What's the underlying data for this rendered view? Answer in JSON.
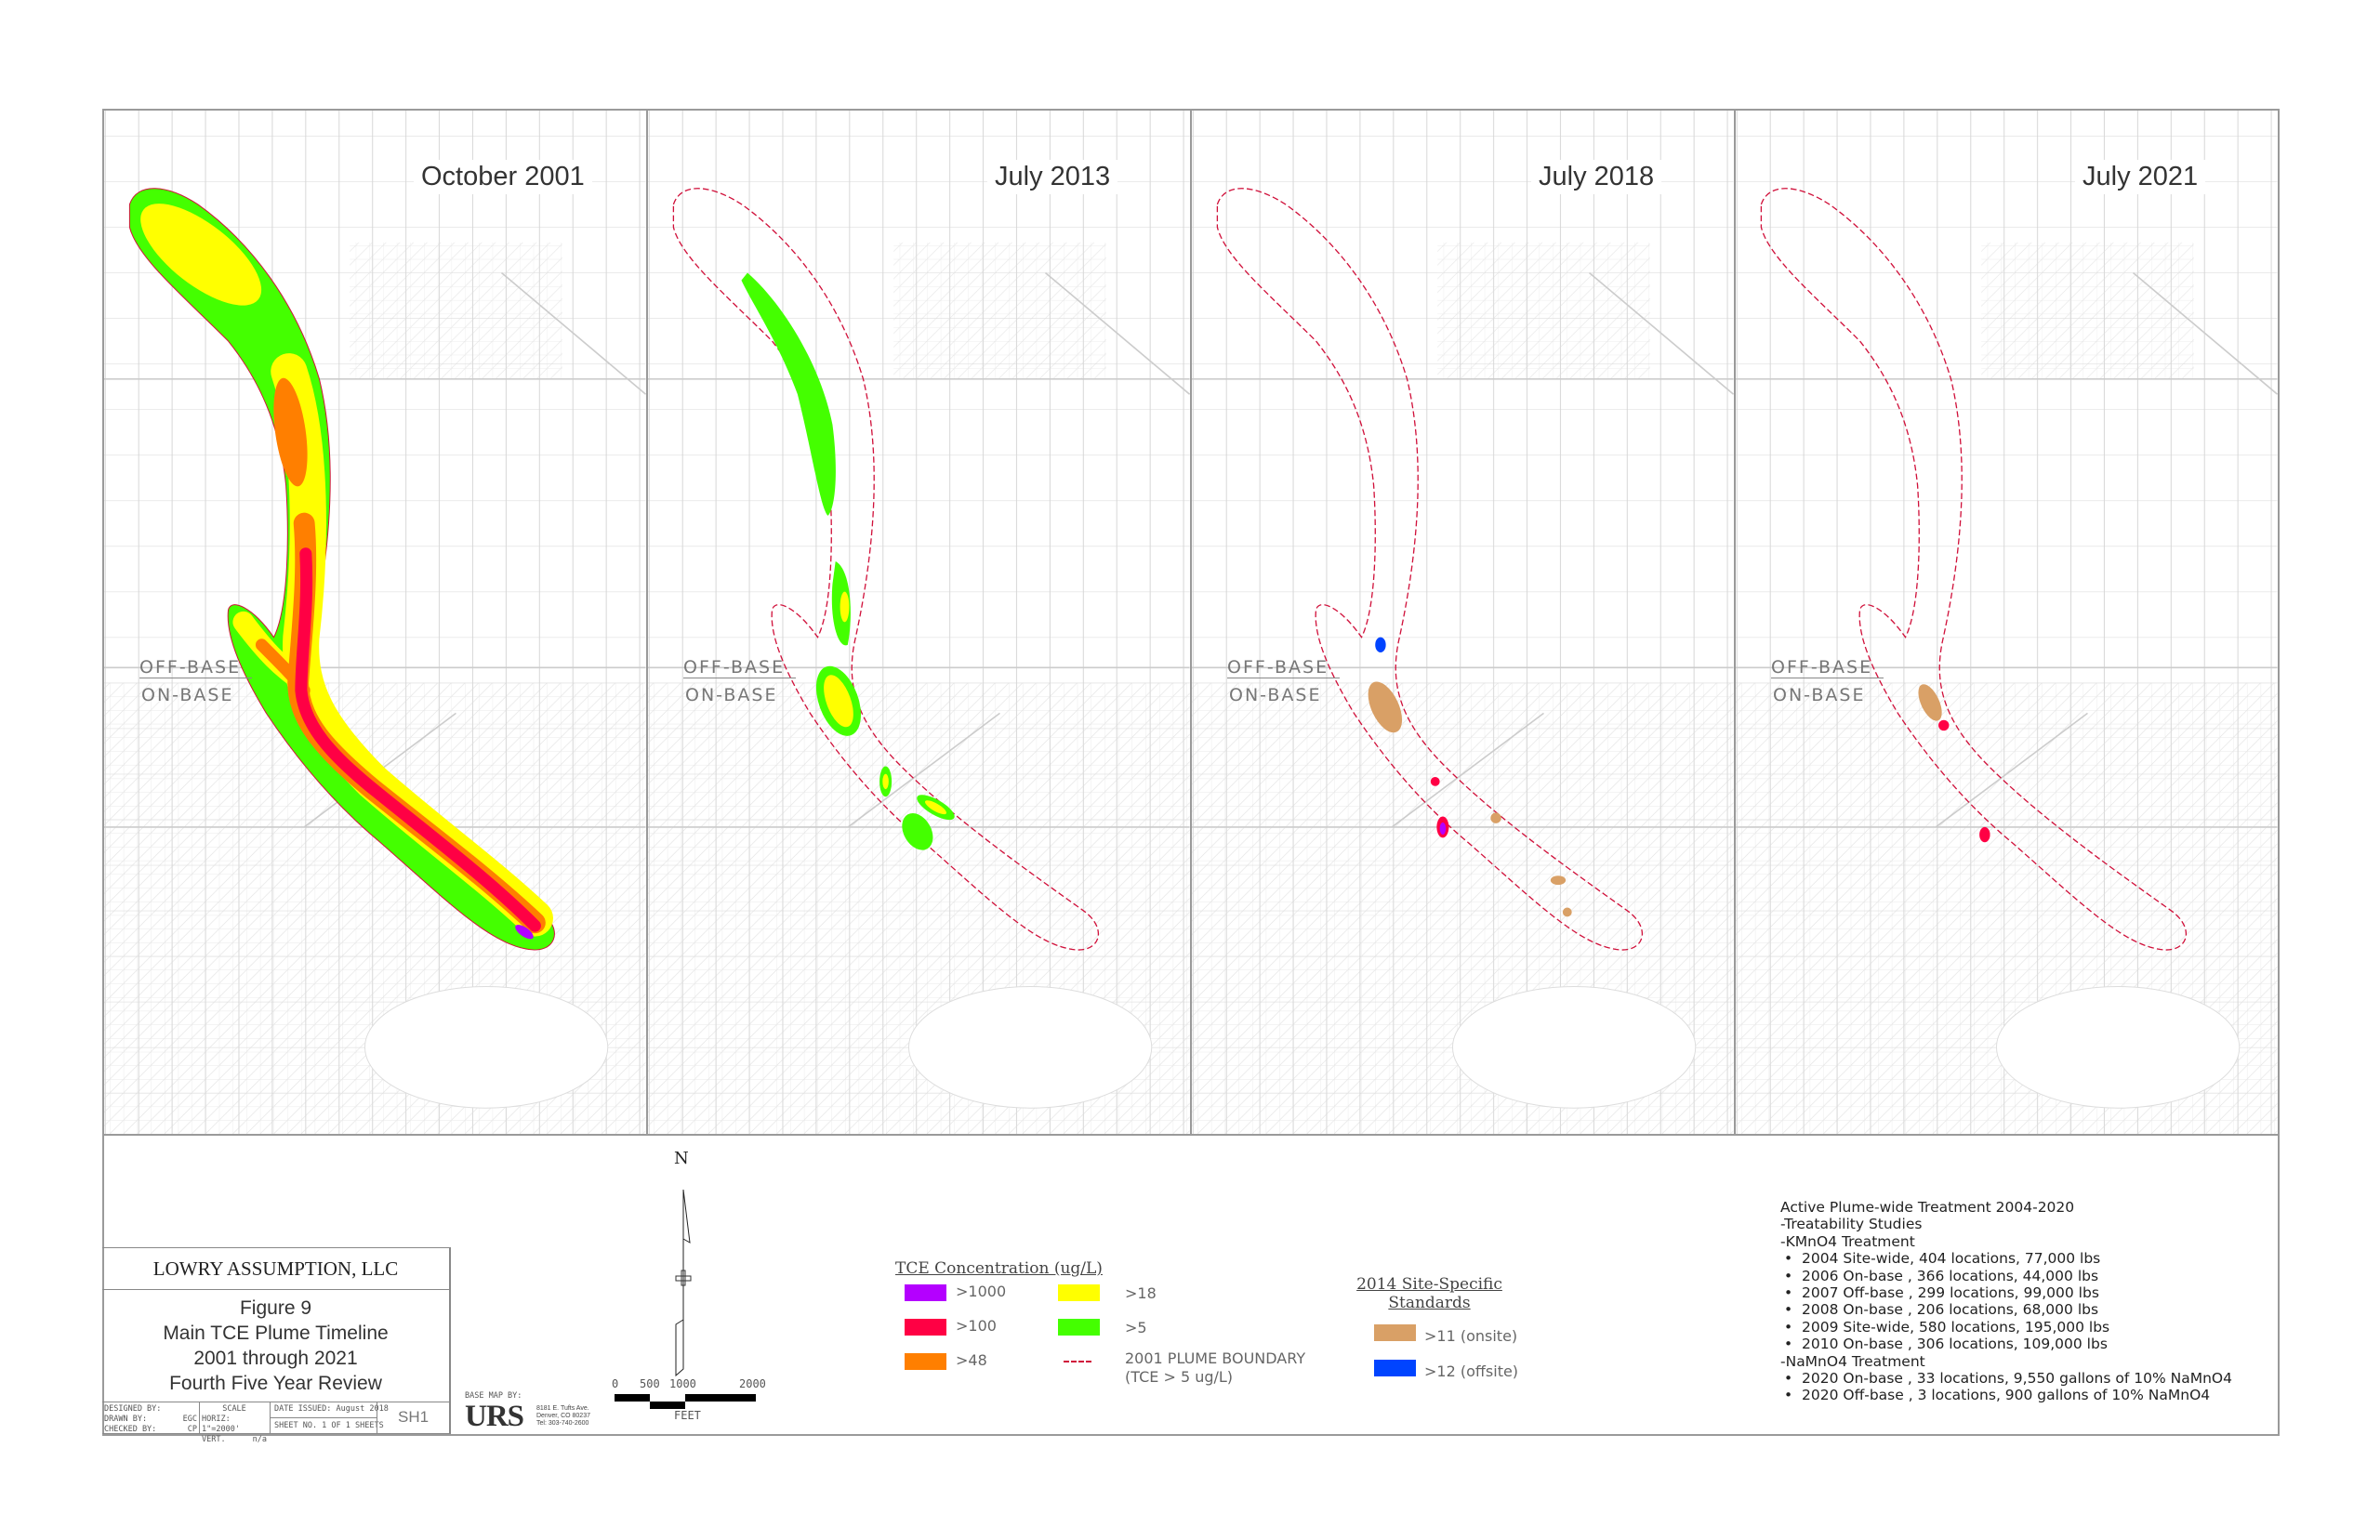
{
  "panels": [
    {
      "title": "October 2001",
      "off_base": "OFF-BASE",
      "on_base": "ON-BASE"
    },
    {
      "title": "July 2013",
      "off_base": "OFF-BASE",
      "on_base": "ON-BASE"
    },
    {
      "title": "July 2018",
      "off_base": "OFF-BASE",
      "on_base": "ON-BASE"
    },
    {
      "title": "July 2021",
      "off_base": "OFF-BASE",
      "on_base": "ON-BASE"
    }
  ],
  "title_block": {
    "company": "LOWRY ASSUMPTION, LLC",
    "figure": "Figure 9",
    "line1": "Main TCE Plume Timeline",
    "line2": "2001 through 2021",
    "line3": "Fourth Five Year Review",
    "designed_by": "DESIGNED BY:",
    "drawn_by": "DRAWN BY:",
    "drawn_by_value": "EGC",
    "checked_by": "CHECKED BY:",
    "checked_by_value": "CP",
    "scale_label": "SCALE",
    "scale_horiz": "HORIZ: 1\"=2000'",
    "scale_vert": "VERT.",
    "scale_vert_value": "n/a",
    "date_issued": "DATE ISSUED: August 2018",
    "sheet": "SHEET NO.  1  OF  1  SHEETS",
    "sheet_id": "SH1"
  },
  "base_map": {
    "label": "BASE MAP BY:",
    "logo": "URS",
    "address1": "8181 E. Tufts Ave.",
    "address2": "Denver, CO 80237",
    "phone": "Tel: 303-740-2600"
  },
  "north_arrow": {
    "label": "N"
  },
  "scale_bar": {
    "ticks": [
      "0",
      "500",
      "1000",
      "2000"
    ],
    "unit": "FEET"
  },
  "legend": {
    "title": "TCE Concentration (ug/L)",
    "items": [
      {
        "label": ">1000",
        "color": "#b400ff"
      },
      {
        "label": ">100",
        "color": "#ff0044"
      },
      {
        "label": ">48",
        "color": "#ff7f00"
      },
      {
        "label": ">18",
        "color": "#ffff00"
      },
      {
        "label": ">5",
        "color": "#44ff00"
      }
    ],
    "boundary_label1": "2001 PLUME BOUNDARY",
    "boundary_label2": "(TCE > 5 ug/L)",
    "boundary_color": "#d0103a",
    "standards_title1": "2014 Site-Specific",
    "standards_title2": "Standards",
    "standards": [
      {
        "label": ">11 (onsite)",
        "color": "#d9a066"
      },
      {
        "label": ">12 (offsite)",
        "color": "#0044ff"
      }
    ]
  },
  "notes": {
    "heading": "Active Plume-wide Treatment 2004-2020",
    "sub1": "-Treatability Studies",
    "sub2": "-KMnO4 Treatment",
    "kmno4": [
      "2004 Site-wide, 404 locations, 77,000 lbs",
      "2006 On-base , 366 locations, 44,000 lbs",
      "2007 Off-base , 299 locations, 99,000 lbs",
      "2008  On-base , 206 locations, 68,000 lbs",
      "2009 Site-wide, 580 locations, 195,000 lbs",
      "2010  On-base , 306 locations, 109,000 lbs"
    ],
    "sub3": "-NaMnO4 Treatment",
    "namno4": [
      "2020 On-base , 33 locations, 9,550 gallons of 10% NaMnO4",
      "2020 Off-base , 3 locations, 900 gallons of 10% NaMnO4"
    ]
  }
}
